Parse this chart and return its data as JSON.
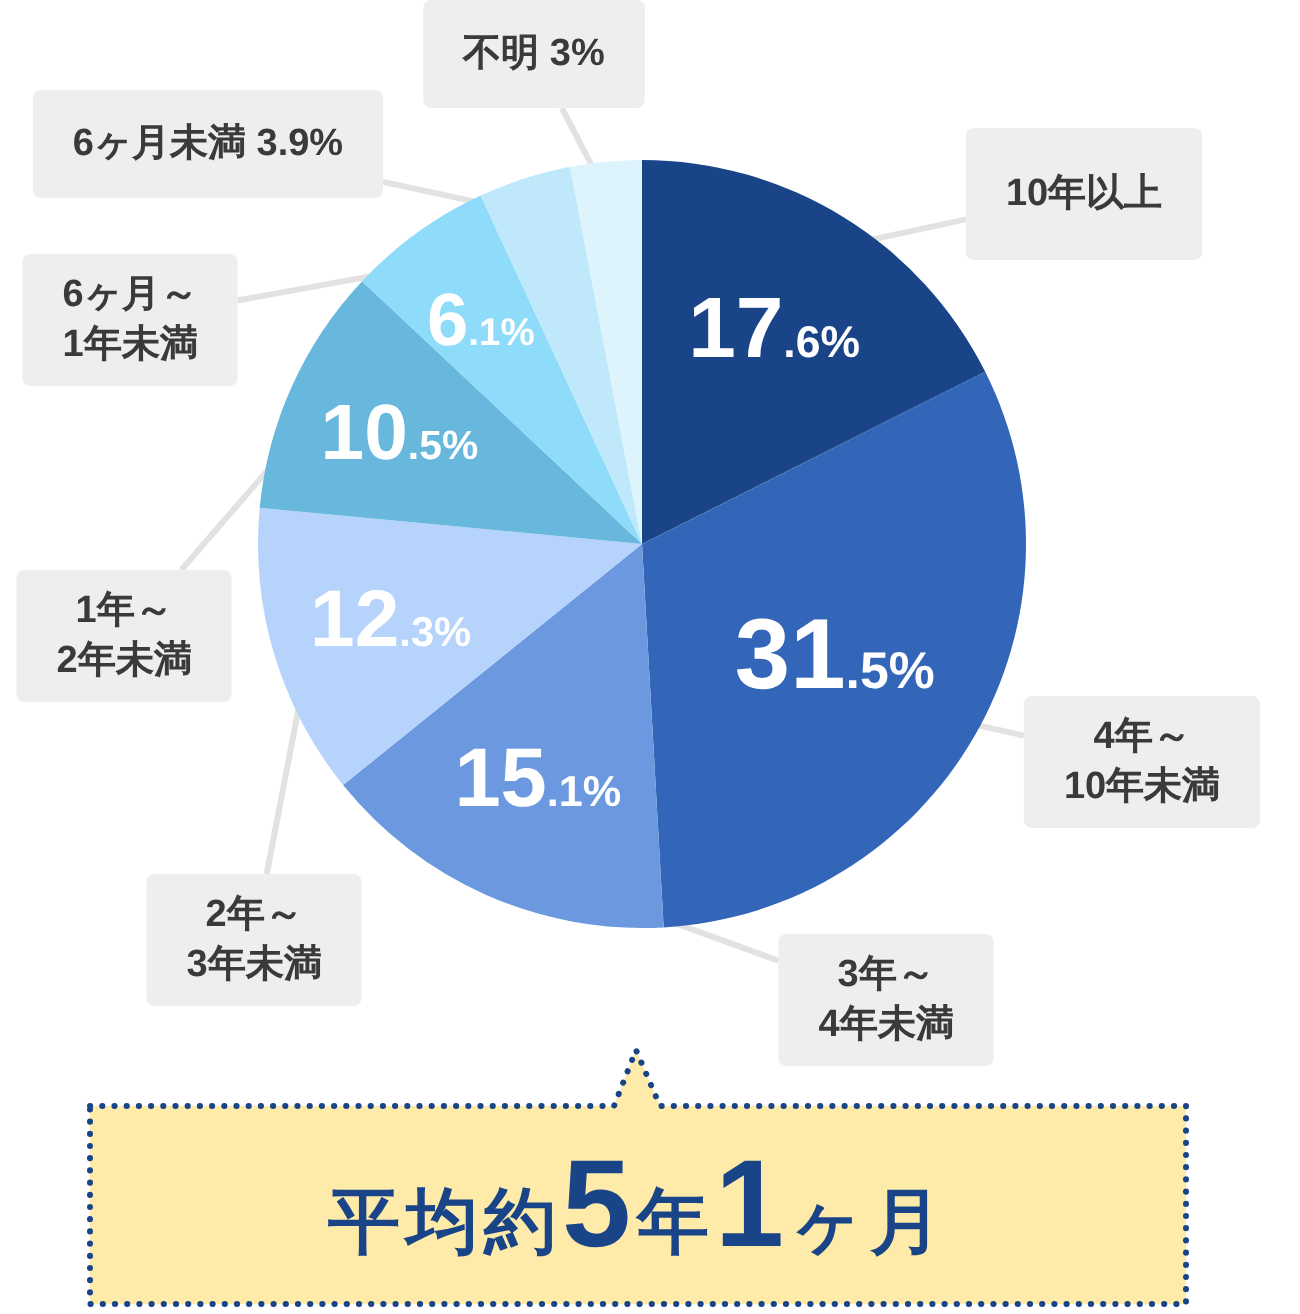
{
  "chart_data": {
    "type": "pie",
    "categories": [
      "10年以上",
      "4年～\n10年未満",
      "3年～\n4年未満",
      "2年～\n3年未満",
      "1年～\n2年未満",
      "6ヶ月～\n1年未満",
      "6ヶ月未満",
      "不明"
    ],
    "values": [
      17.6,
      31.5,
      15.1,
      12.3,
      10.5,
      6.1,
      3.9,
      3
    ],
    "value_labels": [
      "17.6%",
      "31.5%",
      "15.1%",
      "12.3%",
      "10.5%",
      "6.1%",
      "3.9%",
      "3%"
    ],
    "colors": [
      "#1a4488",
      "#3366b8",
      "#6b98de",
      "#b5d3fb",
      "#67b8dc",
      "#8fdcfa",
      "#bfe9fb",
      "#def4fd"
    ],
    "annotations": [
      "平均約5年1ヶ月"
    ]
  }
}
